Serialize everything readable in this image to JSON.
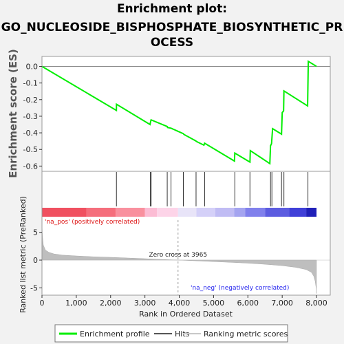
{
  "window": {
    "background": "#f2f2f2"
  },
  "title": {
    "line1": "Enrichment plot:",
    "line2": "GO_NUCLEOSIDE_BISPHOSPHATE_BIOSYNTHETIC_PR",
    "line3": "OCESS"
  },
  "chart_data": {
    "type": "line",
    "xlabel": "Rank in Ordered Dataset",
    "ylabel_top": "Enrichment score (ES)",
    "ylabel_bottom": "Ranked list metric (PreRanked)",
    "x_ticks": [
      0,
      1000,
      2000,
      3000,
      4000,
      5000,
      6000,
      7000,
      8000
    ],
    "x_range": [
      0,
      8400
    ],
    "es_y_ticks": [
      0.0,
      -0.1,
      -0.2,
      -0.3,
      -0.4,
      -0.5,
      -0.6
    ],
    "es_ylim": [
      -0.615,
      0.06
    ],
    "metric_y_ticks": [
      5,
      0,
      -5
    ],
    "metric_ylim": [
      -6.3,
      7.3
    ],
    "es_points": [
      [
        0,
        0.0
      ],
      [
        2170,
        -0.265
      ],
      [
        2172,
        -0.228
      ],
      [
        3150,
        -0.35
      ],
      [
        3160,
        -0.338
      ],
      [
        3180,
        -0.322
      ],
      [
        3650,
        -0.362
      ],
      [
        3660,
        -0.368
      ],
      [
        3760,
        -0.372
      ],
      [
        3780,
        -0.374
      ],
      [
        4120,
        -0.405
      ],
      [
        4140,
        -0.41
      ],
      [
        4480,
        -0.448
      ],
      [
        4500,
        -0.452
      ],
      [
        4520,
        -0.454
      ],
      [
        4720,
        -0.474
      ],
      [
        4740,
        -0.462
      ],
      [
        5610,
        -0.57
      ],
      [
        5620,
        -0.522
      ],
      [
        6060,
        -0.576
      ],
      [
        6070,
        -0.507
      ],
      [
        6640,
        -0.585
      ],
      [
        6660,
        -0.478
      ],
      [
        6690,
        -0.465
      ],
      [
        6720,
        -0.375
      ],
      [
        6980,
        -0.408
      ],
      [
        7000,
        -0.278
      ],
      [
        7040,
        -0.268
      ],
      [
        7050,
        -0.148
      ],
      [
        7740,
        -0.238
      ],
      [
        7760,
        0.03
      ],
      [
        8000,
        0.0
      ]
    ],
    "hits": [
      2170,
      3160,
      3180,
      3650,
      3760,
      4120,
      4490,
      4740,
      5620,
      6060,
      6660,
      6700,
      6980,
      7050,
      7750
    ],
    "zero_cross": 3965,
    "zero_cross_label": "Zero cross at 3965",
    "pos_label": "'na_pos' (positively correlated)",
    "neg_label": "'na_neg' (negatively correlated)",
    "metric_curve": [
      [
        0,
        6.6
      ],
      [
        15,
        4.2
      ],
      [
        40,
        2.7
      ],
      [
        100,
        1.8
      ],
      [
        200,
        1.4
      ],
      [
        350,
        1.1
      ],
      [
        600,
        0.9
      ],
      [
        1000,
        0.75
      ],
      [
        1500,
        0.6
      ],
      [
        2000,
        0.5
      ],
      [
        2500,
        0.38
      ],
      [
        3000,
        0.25
      ],
      [
        3500,
        0.12
      ],
      [
        3965,
        0.0
      ],
      [
        4500,
        -0.13
      ],
      [
        5000,
        -0.27
      ],
      [
        5500,
        -0.4
      ],
      [
        6000,
        -0.55
      ],
      [
        6500,
        -0.75
      ],
      [
        7000,
        -1.0
      ],
      [
        7400,
        -1.3
      ],
      [
        7700,
        -1.7
      ],
      [
        7850,
        -2.2
      ],
      [
        7920,
        -2.9
      ],
      [
        7960,
        -3.8
      ],
      [
        7990,
        -5.0
      ],
      [
        8000,
        -6.0
      ]
    ],
    "heat_segments": [
      {
        "x0": 0,
        "x1": 1300,
        "color": "#f05060"
      },
      {
        "x0": 1300,
        "x1": 2150,
        "color": "#f56e7c"
      },
      {
        "x0": 2150,
        "x1": 3000,
        "color": "#f9909e"
      },
      {
        "x0": 3000,
        "x1": 3350,
        "color": "#fcbcd4"
      },
      {
        "x0": 3350,
        "x1": 3965,
        "color": "#fdd4e8"
      },
      {
        "x0": 3965,
        "x1": 4500,
        "color": "#e8e4f8"
      },
      {
        "x0": 4500,
        "x1": 5050,
        "color": "#d4d0f8"
      },
      {
        "x0": 5050,
        "x1": 5600,
        "color": "#c0bcf4"
      },
      {
        "x0": 5600,
        "x1": 5920,
        "color": "#a4a4f0"
      },
      {
        "x0": 5920,
        "x1": 6500,
        "color": "#8080ec"
      },
      {
        "x0": 6500,
        "x1": 7200,
        "color": "#5c5ce0"
      },
      {
        "x0": 7200,
        "x1": 7700,
        "color": "#4040d8"
      },
      {
        "x0": 7700,
        "x1": 8000,
        "color": "#2020b8"
      }
    ],
    "legend": [
      {
        "label": "Enrichment profile",
        "color": "#00ee00"
      },
      {
        "label": "Hits",
        "color": "#555555"
      },
      {
        "label": "Ranking metric scores",
        "color": "#c8c8c8"
      }
    ],
    "colors": {
      "profile": "#00ee00",
      "hit": "#333333",
      "metric_fill": "#bebebe",
      "pos_text": "#dd1111",
      "neg_text": "#2222ee"
    }
  }
}
